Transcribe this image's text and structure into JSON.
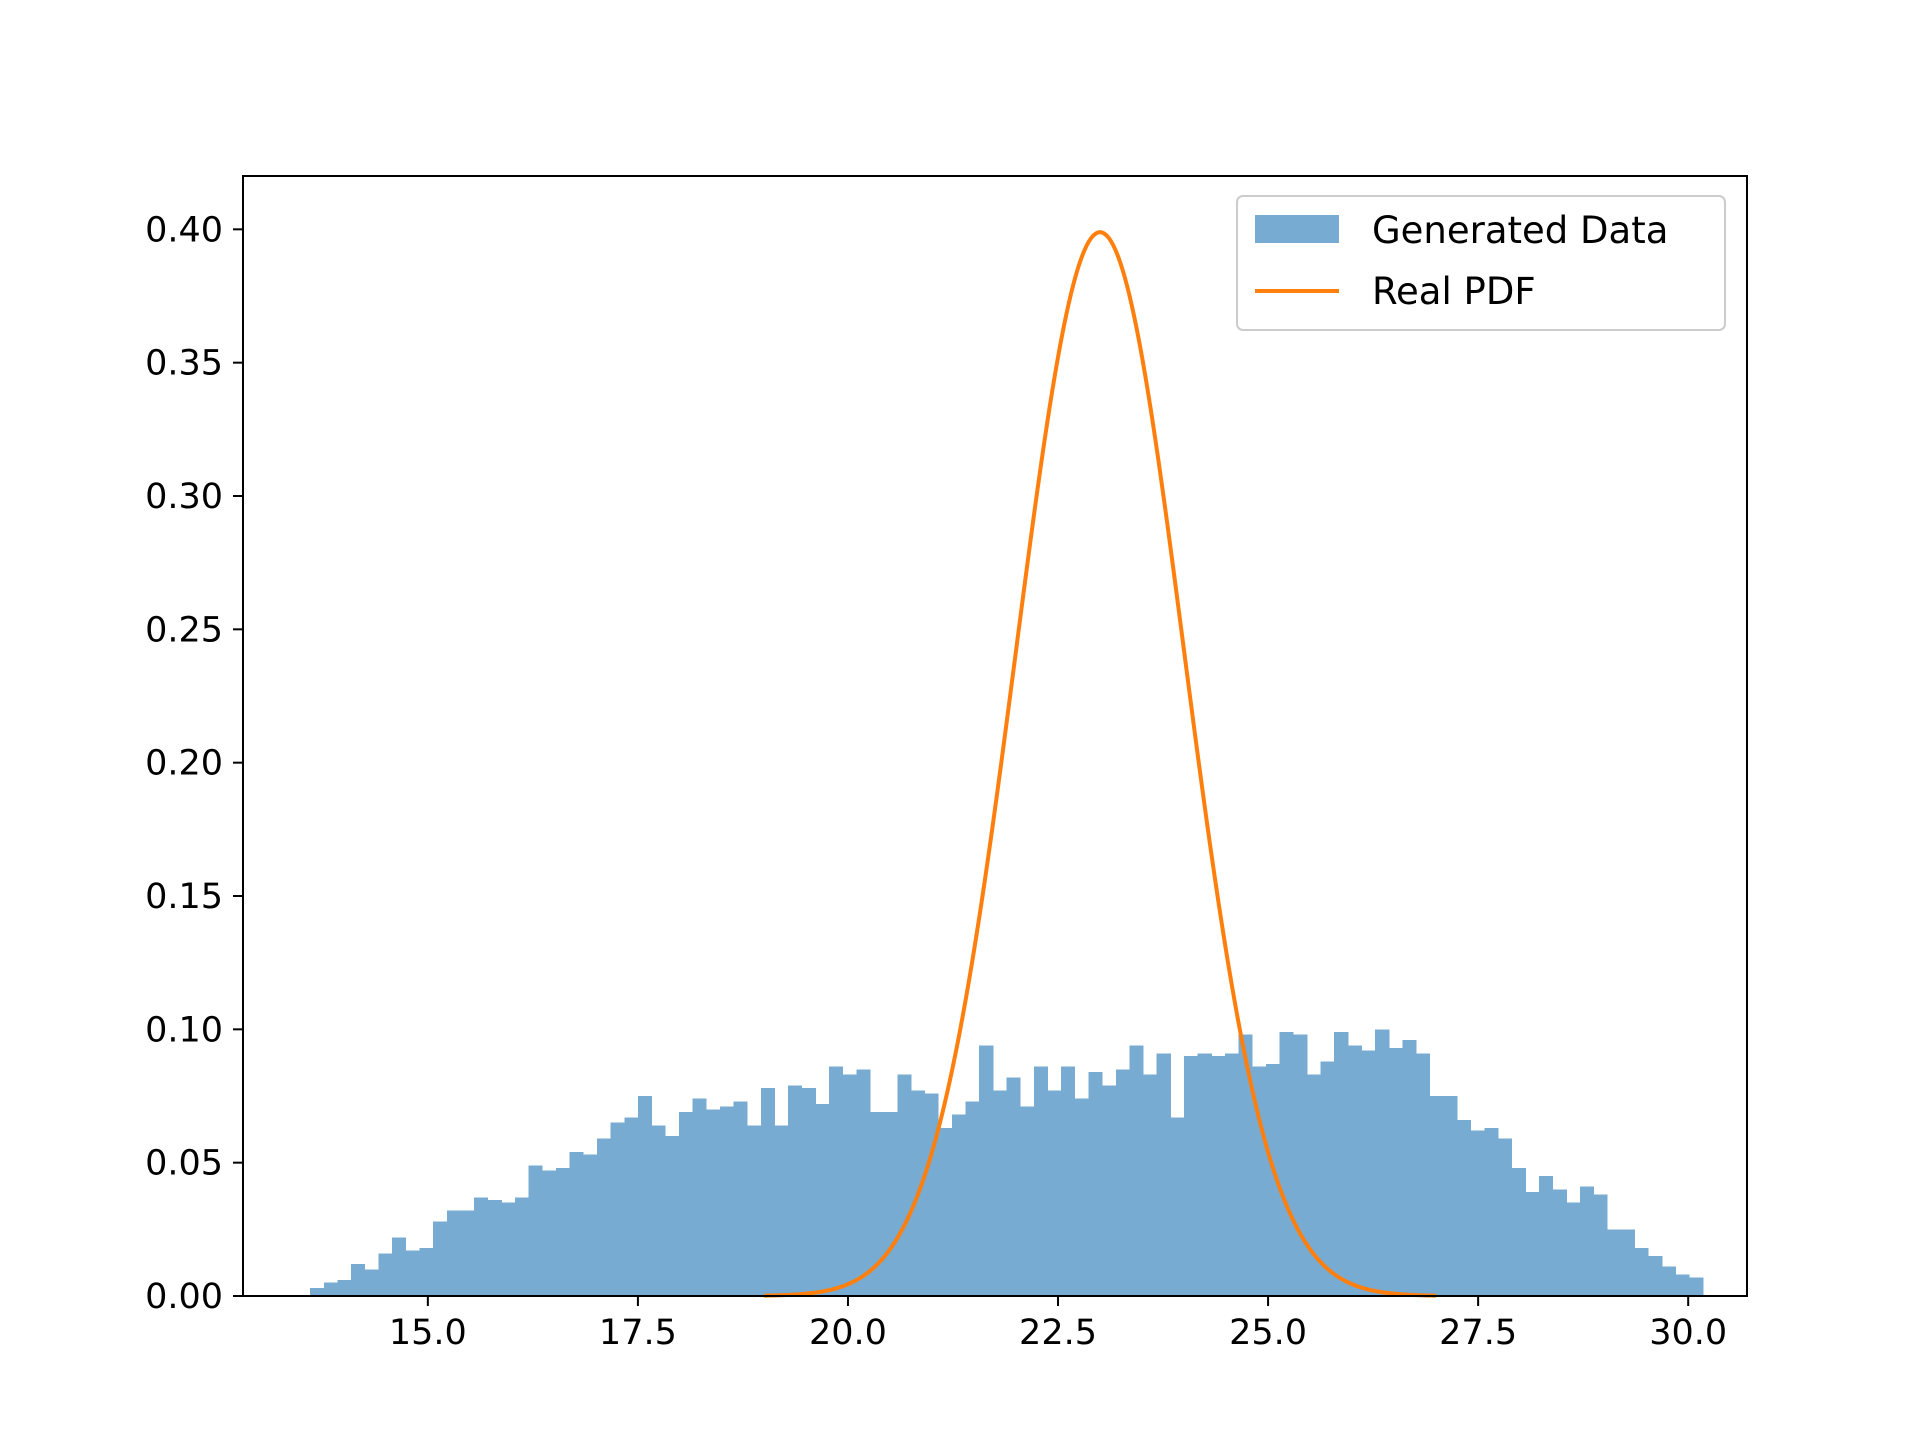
{
  "chart_data": {
    "type": "bar",
    "title": "",
    "xlabel": "",
    "ylabel": "",
    "xlim": [
      12.8,
      30.7
    ],
    "ylim": [
      0,
      0.42
    ],
    "grid": false,
    "legend_placement": "top-right",
    "xticks": [
      15.0,
      17.5,
      20.0,
      22.5,
      25.0,
      27.5,
      30.0
    ],
    "xtick_labels": [
      "15.0",
      "17.5",
      "20.0",
      "22.5",
      "25.0",
      "27.5",
      "30.0"
    ],
    "yticks": [
      0.0,
      0.05,
      0.1,
      0.15,
      0.2,
      0.25,
      0.3,
      0.35,
      0.4
    ],
    "ytick_labels": [
      "0.00",
      "0.05",
      "0.10",
      "0.15",
      "0.20",
      "0.25",
      "0.30",
      "0.35",
      "0.40"
    ],
    "series": [
      {
        "name": "Generated Data",
        "type": "histogram",
        "color": "#78abd1",
        "bin_start": 13.6,
        "bin_width": 0.1625,
        "values": [
          0.003,
          0.005,
          0.006,
          0.012,
          0.01,
          0.016,
          0.022,
          0.017,
          0.018,
          0.028,
          0.032,
          0.032,
          0.037,
          0.036,
          0.035,
          0.037,
          0.049,
          0.047,
          0.048,
          0.054,
          0.053,
          0.059,
          0.065,
          0.067,
          0.075,
          0.064,
          0.06,
          0.069,
          0.074,
          0.07,
          0.071,
          0.073,
          0.064,
          0.078,
          0.064,
          0.079,
          0.078,
          0.072,
          0.086,
          0.083,
          0.085,
          0.069,
          0.069,
          0.083,
          0.077,
          0.076,
          0.063,
          0.068,
          0.073,
          0.094,
          0.077,
          0.082,
          0.071,
          0.086,
          0.077,
          0.086,
          0.074,
          0.084,
          0.079,
          0.085,
          0.094,
          0.083,
          0.091,
          0.067,
          0.09,
          0.091,
          0.09,
          0.091,
          0.098,
          0.086,
          0.087,
          0.099,
          0.098,
          0.083,
          0.088,
          0.099,
          0.094,
          0.092,
          0.1,
          0.093,
          0.096,
          0.091,
          0.075,
          0.075,
          0.066,
          0.062,
          0.063,
          0.059,
          0.048,
          0.039,
          0.045,
          0.04,
          0.035,
          0.041,
          0.038,
          0.025,
          0.025,
          0.018,
          0.015,
          0.011,
          0.008,
          0.007
        ]
      },
      {
        "name": "Real PDF",
        "type": "line",
        "color": "#ff7f0e",
        "distribution": "normal",
        "mean": 23.0,
        "std": 1.0,
        "x_range": [
          19.0,
          27.0
        ]
      }
    ]
  }
}
